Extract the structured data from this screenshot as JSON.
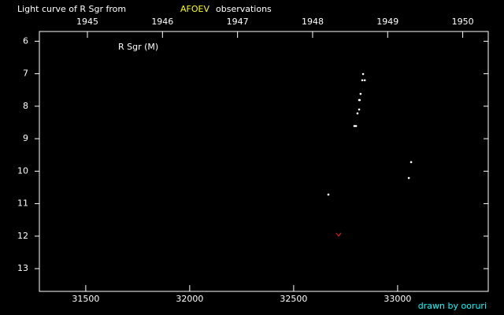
{
  "chart_data": {
    "type": "scatter",
    "title_parts": [
      {
        "text": "Light curve of R Sgr from",
        "color": "#ffffff"
      },
      {
        "text": "AFOEV",
        "color": "#ffff00"
      },
      {
        "text": "observations",
        "color": "#ffffff"
      }
    ],
    "label": "R Sgr (M)",
    "credit": "drawn by ooruri",
    "xlim": [
      31277,
      33436
    ],
    "xticks": [
      31500,
      32000,
      32500,
      33000
    ],
    "x2lim": [
      1944.36,
      1950.34
    ],
    "x2ticks": [
      1945,
      1946,
      1947,
      1948,
      1949,
      1950
    ],
    "ylim": [
      5.7,
      13.7
    ],
    "yticks": [
      6,
      7,
      8,
      9,
      10,
      11,
      12,
      13
    ],
    "y_inverted": true,
    "series": [
      {
        "color": "#ffffff",
        "marker": "dot",
        "x": [
          32834,
          32830,
          32842,
          32822,
          32815,
          32818,
          32815,
          32807,
          32792,
          32800,
          33065,
          33054,
          32667
        ],
        "values": [
          7.01,
          7.2,
          7.2,
          7.62,
          7.81,
          7.81,
          8.1,
          8.22,
          8.61,
          8.61,
          9.72,
          10.21,
          10.72
        ]
      },
      {
        "color": "#ff2020",
        "marker": "v",
        "x": [
          32716
        ],
        "values": [
          11.95
        ]
      }
    ]
  }
}
